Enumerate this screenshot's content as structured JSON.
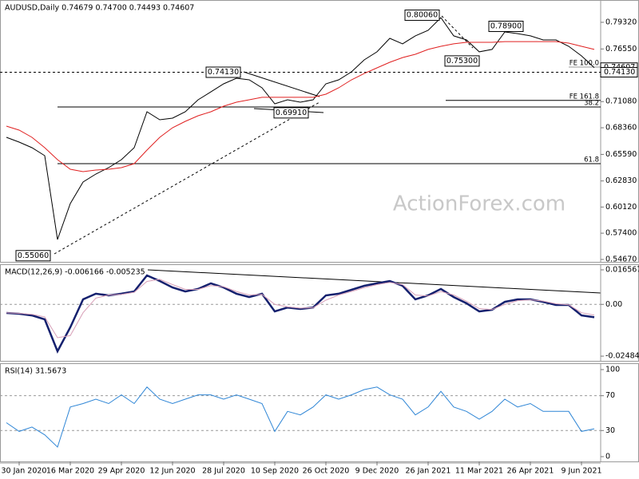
{
  "watermark": "ActionForex.com",
  "chart_data": [
    {
      "type": "line",
      "title": "AUDUSD,Daily  0.74679 0.74700 0.74493 0.74607",
      "series": [
        {
          "color": "#000000",
          "values": [
            0.6737,
            0.6687,
            0.6629,
            0.6546,
            0.5674,
            0.6048,
            0.6272,
            0.6355,
            0.6421,
            0.6504,
            0.6629,
            0.7002,
            0.6919,
            0.6936,
            0.7002,
            0.7127,
            0.7209,
            0.7293,
            0.7351,
            0.7334,
            0.7251,
            0.7085,
            0.7127,
            0.7102,
            0.7127,
            0.7293,
            0.7334,
            0.7417,
            0.7542,
            0.7625,
            0.7766,
            0.7708,
            0.7791,
            0.7849,
            0.7981,
            0.7791,
            0.7749,
            0.7625,
            0.765,
            0.7832,
            0.7815,
            0.7791,
            0.7749,
            0.7749,
            0.7683,
            0.7583,
            0.7461
          ]
        },
        {
          "color": "#e02020",
          "values": [
            0.6853,
            0.6811,
            0.6737,
            0.6629,
            0.6504,
            0.6405,
            0.638,
            0.6396,
            0.6405,
            0.6421,
            0.6463,
            0.6604,
            0.6737,
            0.6836,
            0.6903,
            0.6961,
            0.7002,
            0.706,
            0.7102,
            0.7127,
            0.7152,
            0.7152,
            0.7152,
            0.7152,
            0.7152,
            0.7185,
            0.7251,
            0.7334,
            0.74,
            0.7459,
            0.7517,
            0.7566,
            0.76,
            0.765,
            0.7683,
            0.7708,
            0.7724,
            0.7724,
            0.7724,
            0.7732,
            0.7732,
            0.7732,
            0.7732,
            0.7732,
            0.7716,
            0.7683,
            0.765
          ]
        }
      ],
      "ylim": [
        0.5442,
        0.8164
      ],
      "yticks": [
        {
          "value": 0.7932,
          "label": "0.79320"
        },
        {
          "value": 0.7655,
          "label": "0.76550"
        },
        {
          "value": 0.7378,
          "label": "0.73780"
        },
        {
          "value": 0.7108,
          "label": "0.71080"
        },
        {
          "value": 0.6836,
          "label": "0.68360"
        },
        {
          "value": 0.6559,
          "label": "0.65590"
        },
        {
          "value": 0.6283,
          "label": "0.62830"
        },
        {
          "value": 0.6012,
          "label": "0.60120"
        },
        {
          "value": 0.574,
          "label": "0.57400"
        },
        {
          "value": 0.5467,
          "label": "0.54670"
        }
      ],
      "annotations": [
        {
          "value": 0.8006,
          "label": "0.80060"
        },
        {
          "value": 0.789,
          "label": "0.78900"
        },
        {
          "value": 0.753,
          "label": "0.75300"
        },
        {
          "value": 0.7413,
          "label": "0.74130"
        },
        {
          "value": 0.6991,
          "label": "0.69910"
        },
        {
          "value": 0.5506,
          "label": "0.55060"
        }
      ],
      "levels": [
        {
          "value": 0.7467,
          "label": "FE 100.0"
        },
        {
          "value": 0.712,
          "label": "FE 161.8"
        },
        {
          "value": 0.7052,
          "label": "38.2"
        },
        {
          "value": 0.6463,
          "label": "61.8"
        }
      ],
      "price_labels": [
        {
          "value": 0.74607,
          "label": "0.74607"
        },
        {
          "value": 0.7413,
          "label": "0.74130"
        }
      ]
    },
    {
      "type": "line",
      "title": "MACD(12,26,9) -0.006166 -0.005235",
      "series": [
        {
          "color": "#14206e",
          "values": [
            -0.0041,
            -0.0045,
            -0.0053,
            -0.0072,
            -0.0225,
            -0.011,
            0.0024,
            0.0051,
            0.0043,
            0.0051,
            0.0062,
            0.0139,
            0.0112,
            0.0081,
            0.0062,
            0.0074,
            0.0101,
            0.0081,
            0.0051,
            0.0035,
            0.0051,
            -0.0034,
            -0.0015,
            -0.0022,
            -0.0015,
            0.0043,
            0.0051,
            0.007,
            0.0089,
            0.0101,
            0.0112,
            0.0089,
            0.0024,
            0.0043,
            0.0074,
            0.0035,
            0.0005,
            -0.0034,
            -0.0026,
            0.0012,
            0.0024,
            0.0024,
            0.0012,
            -0.0003,
            -0.0003,
            -0.0053,
            -0.0062
          ]
        },
        {
          "color": "#d8a0b8",
          "values": [
            -0.004,
            -0.0043,
            -0.0048,
            -0.006,
            -0.016,
            -0.015,
            -0.004,
            0.003,
            0.0045,
            0.0048,
            0.0058,
            0.011,
            0.012,
            0.0095,
            0.0072,
            0.0072,
            0.009,
            0.0085,
            0.0062,
            0.0045,
            0.0048,
            0,
            -0.0012,
            -0.0018,
            -0.0016,
            0.002,
            0.0045,
            0.0062,
            0.008,
            0.0095,
            0.0105,
            0.0095,
            0.0045,
            0.004,
            0.0062,
            0.0045,
            0.0015,
            -0.002,
            -0.0025,
            0,
            0.0018,
            0.0022,
            0.0016,
            0.0003,
            -0.0002,
            -0.004,
            -0.0052
          ]
        }
      ],
      "ylim": [
        -0.0271,
        0.01925
      ],
      "yticks": [
        0.016567,
        {
          "value": 0,
          "label": "0.00"
        },
        -0.02484
      ],
      "hlines": [
        0
      ]
    },
    {
      "type": "line",
      "title": "RSI(14) 31.5673",
      "categories": [
        null,
        "30 Jan 2020",
        null,
        null,
        null,
        "16 Mar 2020",
        null,
        null,
        null,
        "29 Apr 2020",
        null,
        null,
        null,
        "12 Jun 2020",
        null,
        null,
        null,
        "28 Jul 2020",
        null,
        null,
        null,
        "10 Sep 2020",
        null,
        null,
        null,
        "26 Oct 2020",
        null,
        null,
        null,
        "9 Dec 2020",
        null,
        null,
        null,
        "26 Jan 2021",
        null,
        null,
        null,
        "11 Mar 2021",
        null,
        null,
        null,
        "26 Apr 2021",
        null,
        null,
        null,
        "9 Jun 2021",
        null
      ],
      "series": [
        {
          "color": "#2f86d6",
          "values": [
            39,
            29,
            34,
            25,
            11,
            57,
            61,
            66,
            61,
            71,
            61,
            80,
            66,
            61,
            66,
            71,
            71,
            66,
            71,
            66,
            61,
            29,
            52,
            48,
            57,
            71,
            66,
            71,
            77,
            80,
            71,
            66,
            48,
            57,
            75,
            57,
            52,
            43,
            52,
            66,
            57,
            61,
            52,
            52,
            52,
            29,
            32
          ]
        }
      ],
      "ylim": [
        -5.5,
        107.3
      ],
      "yticks": [
        100,
        70,
        30,
        0
      ],
      "hlines": [
        70,
        30
      ]
    }
  ]
}
